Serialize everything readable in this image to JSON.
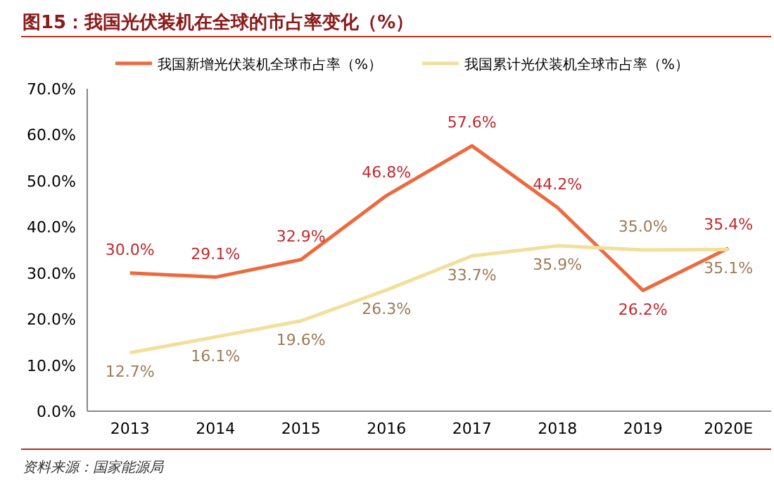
{
  "chart_data": {
    "type": "line",
    "title": "图15：我国光伏装机在全球的市占率变化（%）",
    "categories": [
      "2013",
      "2014",
      "2015",
      "2016",
      "2017",
      "2018",
      "2019",
      "2020E"
    ],
    "series": [
      {
        "name": "我国新增光伏装机全球市占率（%）",
        "color": "#ed6a3f",
        "values": [
          30.0,
          29.1,
          32.9,
          46.8,
          57.6,
          44.2,
          26.2,
          35.4
        ],
        "value_labels": [
          "30.0%",
          "29.1%",
          "32.9%",
          "46.8%",
          "57.6%",
          "44.2%",
          "26.2%",
          "35.4%"
        ]
      },
      {
        "name": "我国累计光伏装机全球市占率（%）",
        "color": "#f2df9a",
        "values": [
          12.7,
          16.1,
          19.6,
          26.3,
          33.7,
          35.9,
          35.0,
          35.1
        ],
        "value_labels": [
          "12.7%",
          "16.1%",
          "19.6%",
          "26.3%",
          "33.7%",
          "35.9%",
          "35.0%",
          "35.1%"
        ]
      }
    ],
    "ylim": [
      0,
      70
    ],
    "yticks": [
      {
        "value": 0,
        "label": "0.0%"
      },
      {
        "value": 10,
        "label": "10.0%"
      },
      {
        "value": 20,
        "label": "20.0%"
      },
      {
        "value": 30,
        "label": "30.0%"
      },
      {
        "value": 40,
        "label": "40.0%"
      },
      {
        "value": 50,
        "label": "50.0%"
      },
      {
        "value": 60,
        "label": "60.0%"
      },
      {
        "value": 70,
        "label": "70.0%"
      }
    ],
    "grid": false,
    "legend": "top",
    "marker": "none",
    "line_style": "solid",
    "annotations": [
      "资料来源：国家能源局"
    ]
  }
}
